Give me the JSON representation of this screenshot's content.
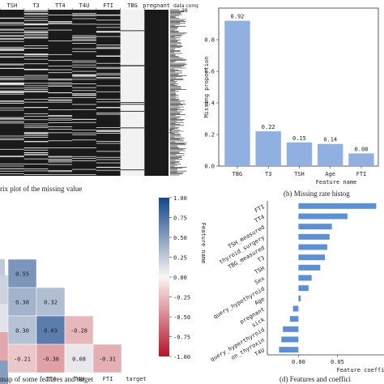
{
  "chart_data": [
    {
      "type": "heatmap",
      "subtype": "missing-value-matrix",
      "columns": [
        "TSH",
        "T3",
        "TT4",
        "T4U",
        "FTI",
        "TBG",
        "pregnant"
      ],
      "right_label": "data completeness",
      "right_ticks": [
        "28",
        "3"
      ],
      "caption": "rix plot of the missing value"
    },
    {
      "type": "bar",
      "categories": [
        "TBG",
        "T3",
        "TSH",
        "Age",
        "FTI"
      ],
      "values": [
        0.92,
        0.22,
        0.15,
        0.14,
        0.08
      ],
      "value_labels": [
        "0.92",
        "0.22",
        "0.15",
        "0.14",
        "0.08"
      ],
      "ylabel": "Missing proportion",
      "xlabel": "Feature name",
      "yticks": [
        "0.0",
        "0.2",
        "0.4",
        "0.6",
        "0.8"
      ],
      "ylim": [
        0,
        1.0
      ],
      "color": "#8fb0e0",
      "caption": "(b) Missing rate histog"
    },
    {
      "type": "heatmap",
      "subtype": "correlation-lower-triangle",
      "xlabels": [
        "TT4",
        "T4U",
        "FTI",
        "target"
      ],
      "cells": [
        {
          "row": 0,
          "col": 0,
          "value": 0.55,
          "label": "0.55"
        },
        {
          "row": 1,
          "col": 0,
          "value": 0.38,
          "label": "0.38"
        },
        {
          "row": 1,
          "col": 1,
          "value": 0.32,
          "label": "0.32"
        },
        {
          "row": 2,
          "col": 0,
          "value": 0.3,
          "label": "0.30"
        },
        {
          "row": 2,
          "col": 1,
          "value": 0.69,
          "label": "0.69"
        },
        {
          "row": 2,
          "col": 2,
          "value": -0.28,
          "label": "-0.28"
        },
        {
          "row": 3,
          "col": 0,
          "value": -0.21,
          "label": "-0.21"
        },
        {
          "row": 3,
          "col": 1,
          "value": -0.38,
          "label": "-0.38"
        },
        {
          "row": 3,
          "col": 2,
          "value": 0.08,
          "label": "0.08"
        },
        {
          "row": 3,
          "col": 3,
          "value": -0.31,
          "label": "-0.31"
        }
      ],
      "colorbar_ticks": [
        "1.00",
        "0.75",
        "0.50",
        "0.25",
        "0.00",
        "-0.25",
        "-0.50",
        "-0.75",
        "-1.00"
      ],
      "colorbar_range": [
        -1,
        1
      ],
      "caption": "map of some features and target"
    },
    {
      "type": "bar",
      "orientation": "horizontal",
      "categories": [
        "FTI",
        "TT4",
        "TSH_measured",
        "thyroid_surgery",
        "TBG_measured",
        "T3",
        "TSH",
        "Sex",
        "query_hypothyroid",
        "Age",
        "pregnant",
        "sick",
        "query_hyperthyroid",
        "on_thyroxin",
        "T4U"
      ],
      "values": [
        0.1,
        0.063,
        0.043,
        0.04,
        0.037,
        0.034,
        0.028,
        0.017,
        0.013,
        0.003,
        -0.007,
        -0.011,
        -0.02,
        -0.022,
        -0.025
      ],
      "xticks": [
        "0.00",
        "0.05"
      ],
      "xlabel": "Feature coeffi",
      "ylabel": "Feature name",
      "color": "#5b8fd6",
      "caption": "(d) Features and coeffici"
    }
  ]
}
